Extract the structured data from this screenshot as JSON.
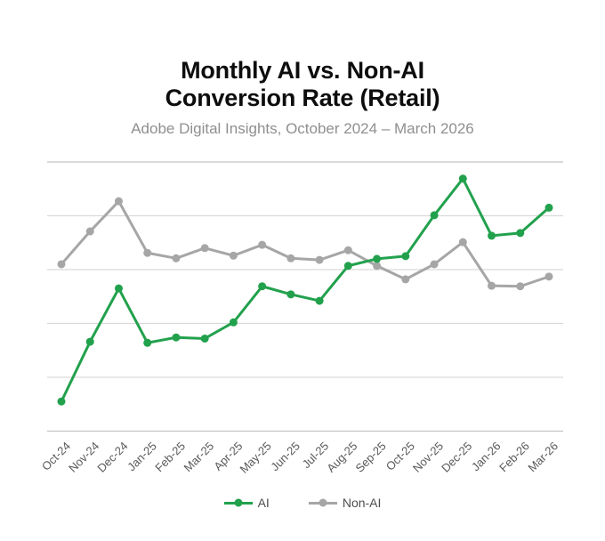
{
  "title": {
    "line1": "Monthly AI vs. Non-AI",
    "line2": "Conversion Rate (Retail)"
  },
  "subtitle": "Adobe Digital Insights, October 2024 – March 2026",
  "chart_data": {
    "type": "line",
    "title": "Monthly AI vs. Non-AI Conversion Rate (Retail)",
    "subtitle": "Adobe Digital Insights, October 2024 – March 2026",
    "xlabel": "",
    "ylabel": "",
    "categories": [
      "Oct-24",
      "Nov-24",
      "Dec-24",
      "Jan-25",
      "Feb-25",
      "Mar-25",
      "Apr-25",
      "May-25",
      "Jun-25",
      "Jul-25",
      "Aug-25",
      "Sep-25",
      "Oct-25",
      "Nov-25",
      "Dec-25",
      "Jan-26",
      "Feb-26",
      "Mar-26"
    ],
    "series": [
      {
        "name": "AI",
        "color": "#22a14d",
        "values": [
          0.55,
          1.66,
          2.65,
          1.64,
          1.74,
          1.72,
          2.02,
          2.69,
          2.54,
          2.42,
          3.07,
          3.2,
          3.25,
          4.01,
          4.69,
          3.63,
          3.68,
          4.15
        ]
      },
      {
        "name": "Non-AI",
        "color": "#a6a6a6",
        "values": [
          3.1,
          3.71,
          4.27,
          3.31,
          3.21,
          3.4,
          3.26,
          3.46,
          3.21,
          3.18,
          3.36,
          3.07,
          2.82,
          3.1,
          3.51,
          2.7,
          2.69,
          2.87
        ]
      }
    ],
    "ylim": [
      0,
      5
    ],
    "y_axis_labels_visible": false,
    "gridlines": {
      "y_values": [
        0,
        1,
        2,
        3,
        4,
        5
      ],
      "inner_color": "#d9d9d9",
      "edge_color": "#c3c3c3"
    },
    "legend_position": "bottom",
    "tick_label_color": "#595959",
    "draw_order": [
      "Non-AI",
      "AI"
    ]
  },
  "legend": {
    "items": [
      {
        "label": "AI",
        "color": "#22a14d"
      },
      {
        "label": "Non-AI",
        "color": "#a6a6a6"
      }
    ]
  }
}
